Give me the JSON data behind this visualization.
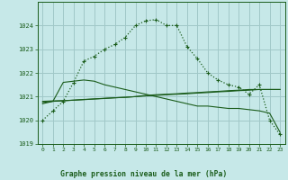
{
  "background_color": "#c6e8e8",
  "grid_color": "#a0c8c8",
  "line_color": "#1a5c1a",
  "title": "Graphe pression niveau de la mer (hPa)",
  "ylim": [
    1019.0,
    1025.0
  ],
  "xlim": [
    -0.5,
    23.5
  ],
  "yticks": [
    1019,
    1020,
    1021,
    1022,
    1023,
    1024
  ],
  "xticks": [
    0,
    1,
    2,
    3,
    4,
    5,
    6,
    7,
    8,
    9,
    10,
    11,
    12,
    13,
    14,
    15,
    16,
    17,
    18,
    19,
    20,
    21,
    22,
    23
  ],
  "line1_x": [
    0,
    1,
    2,
    3,
    4,
    5,
    6,
    7,
    8,
    9,
    10,
    11,
    12,
    13,
    14,
    15,
    16,
    17,
    18,
    19,
    20,
    21,
    22,
    23
  ],
  "line1_y": [
    1020.0,
    1020.4,
    1020.8,
    1021.6,
    1022.5,
    1022.7,
    1023.0,
    1023.2,
    1023.5,
    1024.0,
    1024.2,
    1024.25,
    1024.0,
    1024.0,
    1023.1,
    1022.6,
    1022.0,
    1021.7,
    1021.5,
    1021.4,
    1021.1,
    1021.5,
    1020.0,
    1019.4
  ],
  "line2_x": [
    0,
    1,
    2,
    3,
    4,
    5,
    6,
    7,
    8,
    9,
    10,
    11,
    12,
    13,
    14,
    15,
    16,
    17,
    18,
    19,
    20,
    21,
    22,
    23
  ],
  "line2_y": [
    1020.7,
    1020.8,
    1021.6,
    1021.65,
    1021.7,
    1021.65,
    1021.5,
    1021.4,
    1021.3,
    1021.2,
    1021.1,
    1021.0,
    1020.9,
    1020.8,
    1020.7,
    1020.6,
    1020.6,
    1020.55,
    1020.5,
    1020.5,
    1020.45,
    1020.4,
    1020.3,
    1019.5
  ],
  "line3_x": [
    0,
    1,
    2,
    3,
    4,
    5,
    6,
    7,
    8,
    9,
    10,
    11,
    12,
    13,
    14,
    15,
    16,
    17,
    18,
    19,
    20,
    21,
    22,
    23
  ],
  "line3_y": [
    1020.75,
    1020.8,
    1020.82,
    1020.85,
    1020.88,
    1020.9,
    1020.92,
    1020.95,
    1020.97,
    1021.0,
    1021.05,
    1021.08,
    1021.1,
    1021.12,
    1021.15,
    1021.17,
    1021.2,
    1021.22,
    1021.25,
    1021.27,
    1021.3,
    1021.3,
    1021.3,
    1021.3
  ],
  "line4_x": [
    0,
    1,
    2,
    3,
    4,
    5,
    6,
    7,
    8,
    9,
    10,
    11,
    12,
    13,
    14,
    15,
    16,
    17,
    18,
    19,
    20,
    21,
    22,
    23
  ],
  "line4_y": [
    1020.8,
    1020.82,
    1020.83,
    1020.85,
    1020.87,
    1020.9,
    1020.93,
    1020.95,
    1020.97,
    1021.0,
    1021.03,
    1021.05,
    1021.08,
    1021.1,
    1021.12,
    1021.15,
    1021.17,
    1021.2,
    1021.22,
    1021.25,
    1021.27,
    1021.3,
    1021.3,
    1021.3
  ]
}
